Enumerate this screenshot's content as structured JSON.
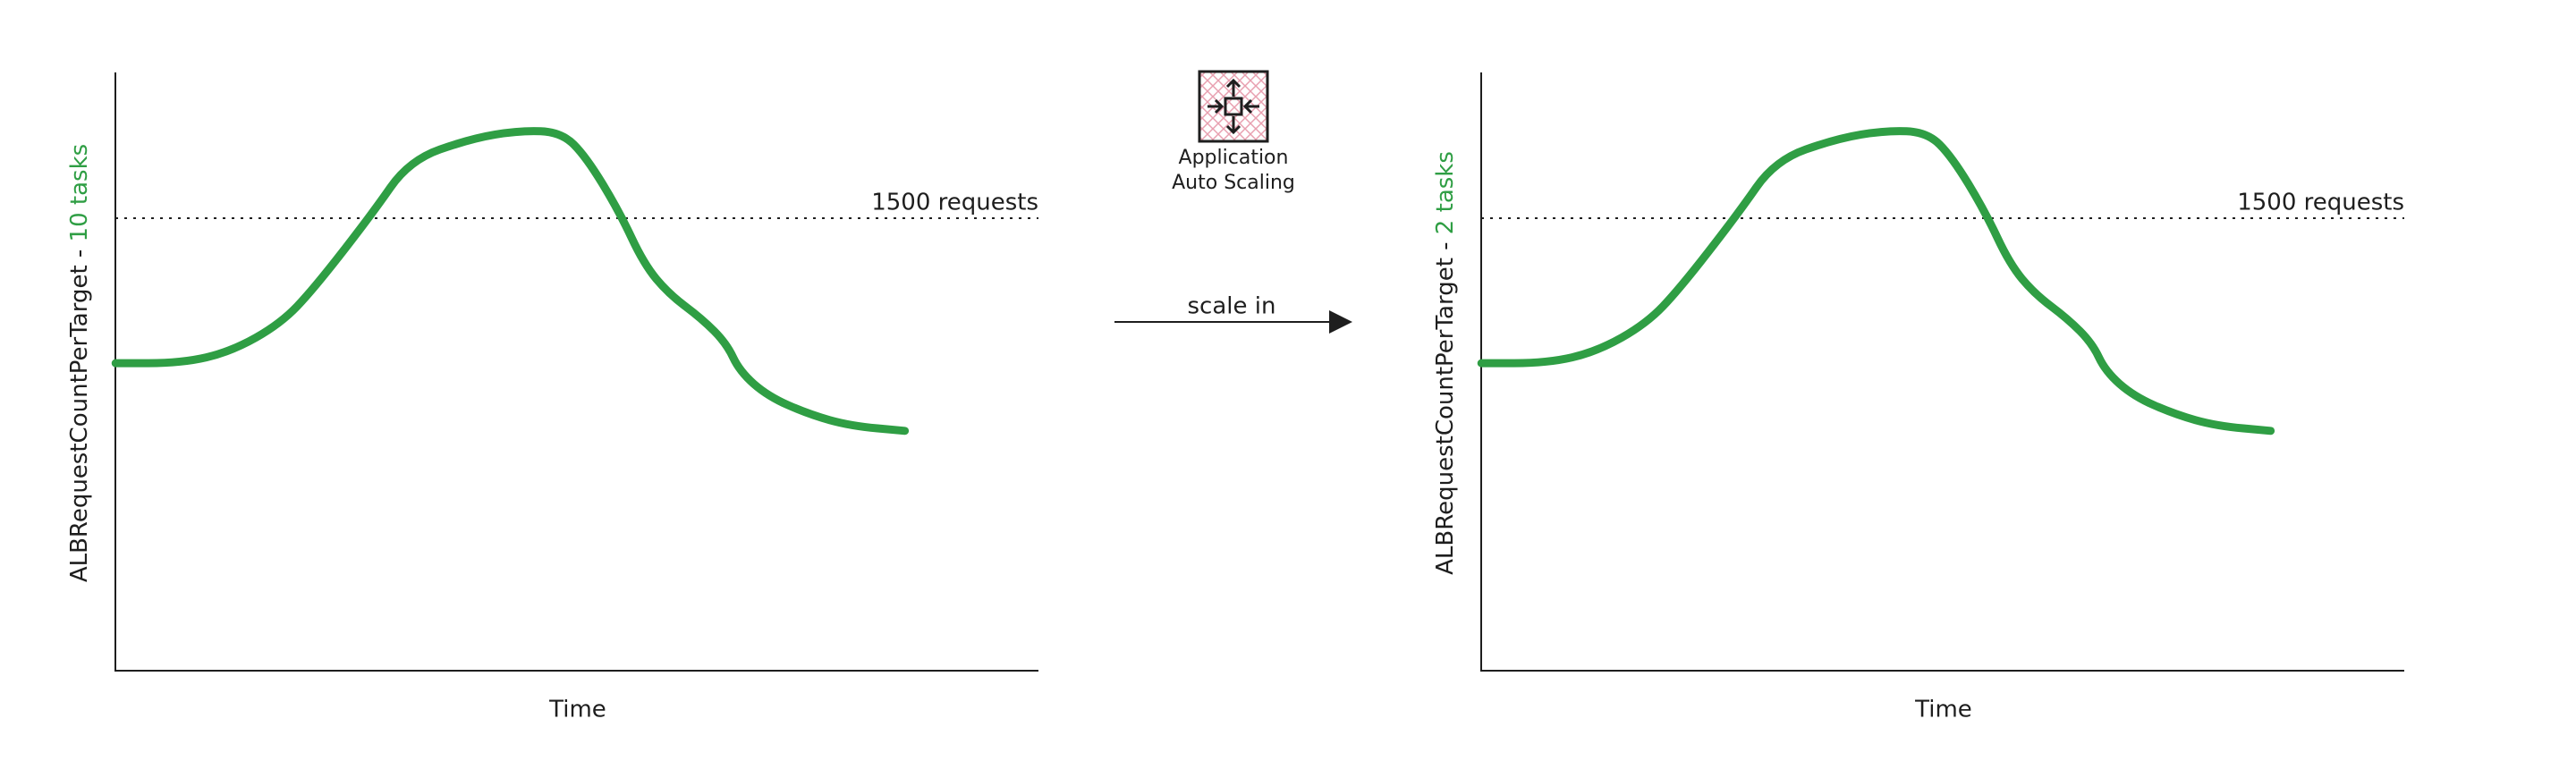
{
  "panels": [
    {
      "y_axis_label": "ALBRequestCountPerTarget - ",
      "tasks": "10 tasks",
      "threshold_label": "1500 requests",
      "x_axis_label": "Time"
    },
    {
      "y_axis_label": "ALBRequestCountPerTarget - ",
      "tasks": "2 tasks",
      "threshold_label": "1500 requests",
      "x_axis_label": "Time"
    }
  ],
  "scaling_service": {
    "line1": "Application",
    "line2": "Auto Scaling"
  },
  "arrow_label": "scale in"
}
